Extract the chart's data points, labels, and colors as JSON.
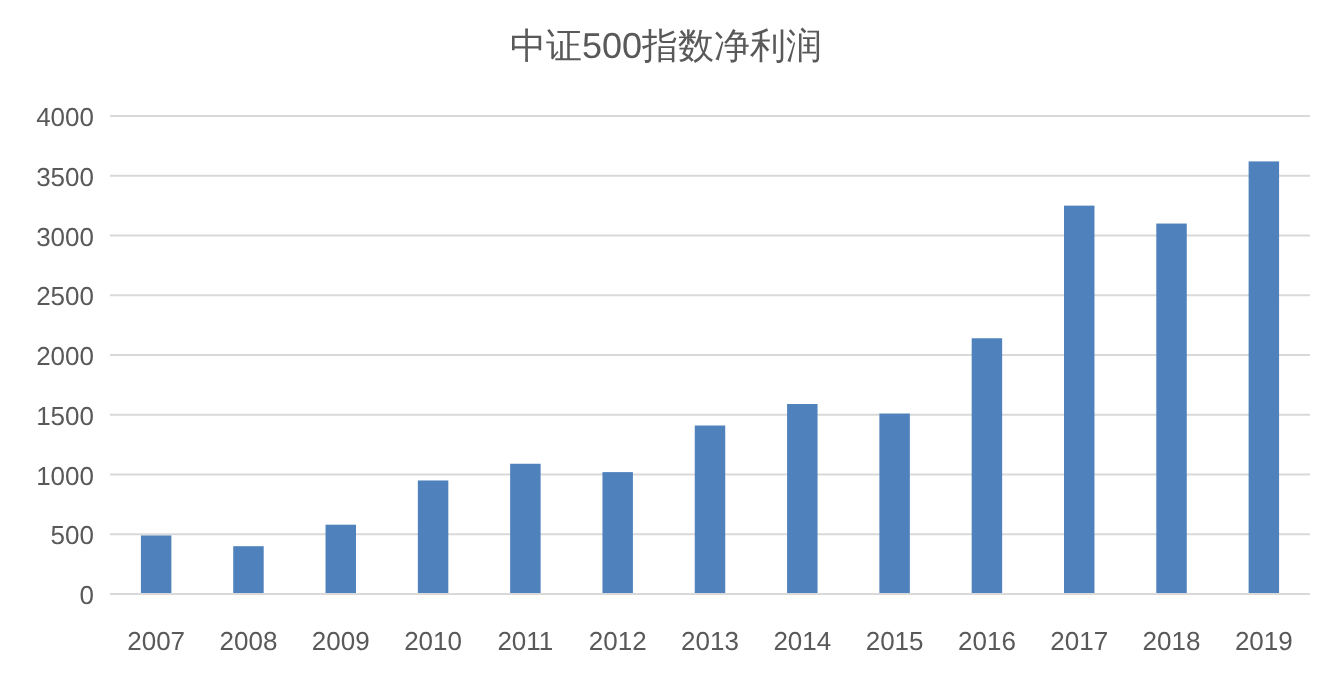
{
  "chart_data": {
    "type": "bar",
    "title": "中证500指数净利润",
    "categories": [
      "2007",
      "2008",
      "2009",
      "2010",
      "2011",
      "2012",
      "2013",
      "2014",
      "2015",
      "2016",
      "2017",
      "2018",
      "2019"
    ],
    "values": [
      490,
      400,
      580,
      950,
      1090,
      1020,
      1410,
      1590,
      1510,
      2140,
      3250,
      3100,
      3620
    ],
    "color": "#4f81bd",
    "ylim": [
      0,
      4000
    ],
    "yticks": [
      0,
      500,
      1000,
      1500,
      2000,
      2500,
      3000,
      3500,
      4000
    ],
    "grid": "y"
  }
}
